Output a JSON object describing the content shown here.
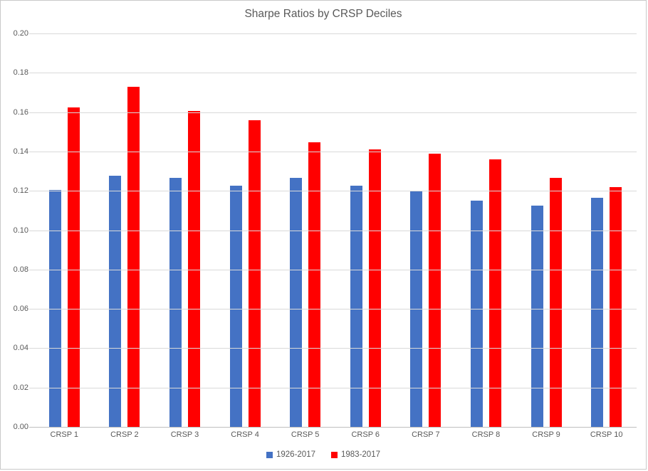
{
  "chart_data": {
    "type": "bar",
    "title": "Sharpe Ratios by CRSP Deciles",
    "xlabel": "",
    "ylabel": "",
    "categories": [
      "CRSP 1",
      "CRSP 2",
      "CRSP 3",
      "CRSP 4",
      "CRSP 5",
      "CRSP 6",
      "CRSP 7",
      "CRSP 8",
      "CRSP 9",
      "CRSP 10"
    ],
    "series": [
      {
        "name": "1926-2017",
        "color": "#4472c4",
        "values": [
          0.1205,
          0.1275,
          0.1265,
          0.1225,
          0.1265,
          0.1225,
          0.12,
          0.115,
          0.1125,
          0.1165
        ]
      },
      {
        "name": "1983-2017",
        "color": "#ff0000",
        "values": [
          0.1625,
          0.173,
          0.1605,
          0.156,
          0.1445,
          0.141,
          0.139,
          0.136,
          0.1265,
          0.122
        ]
      }
    ],
    "y_axis": {
      "min": 0.0,
      "max": 0.2,
      "step": 0.02,
      "tick_labels": [
        "0.00",
        "0.02",
        "0.04",
        "0.06",
        "0.08",
        "0.10",
        "0.12",
        "0.14",
        "0.16",
        "0.18",
        "0.20"
      ]
    },
    "grid": "horizontal",
    "legend_position": "bottom",
    "colors": {
      "gridline": "#d9d9d9",
      "axis_line": "#bfbfbf",
      "text": "#595959",
      "background": "#ffffff",
      "border": "#c9c9c9"
    }
  }
}
